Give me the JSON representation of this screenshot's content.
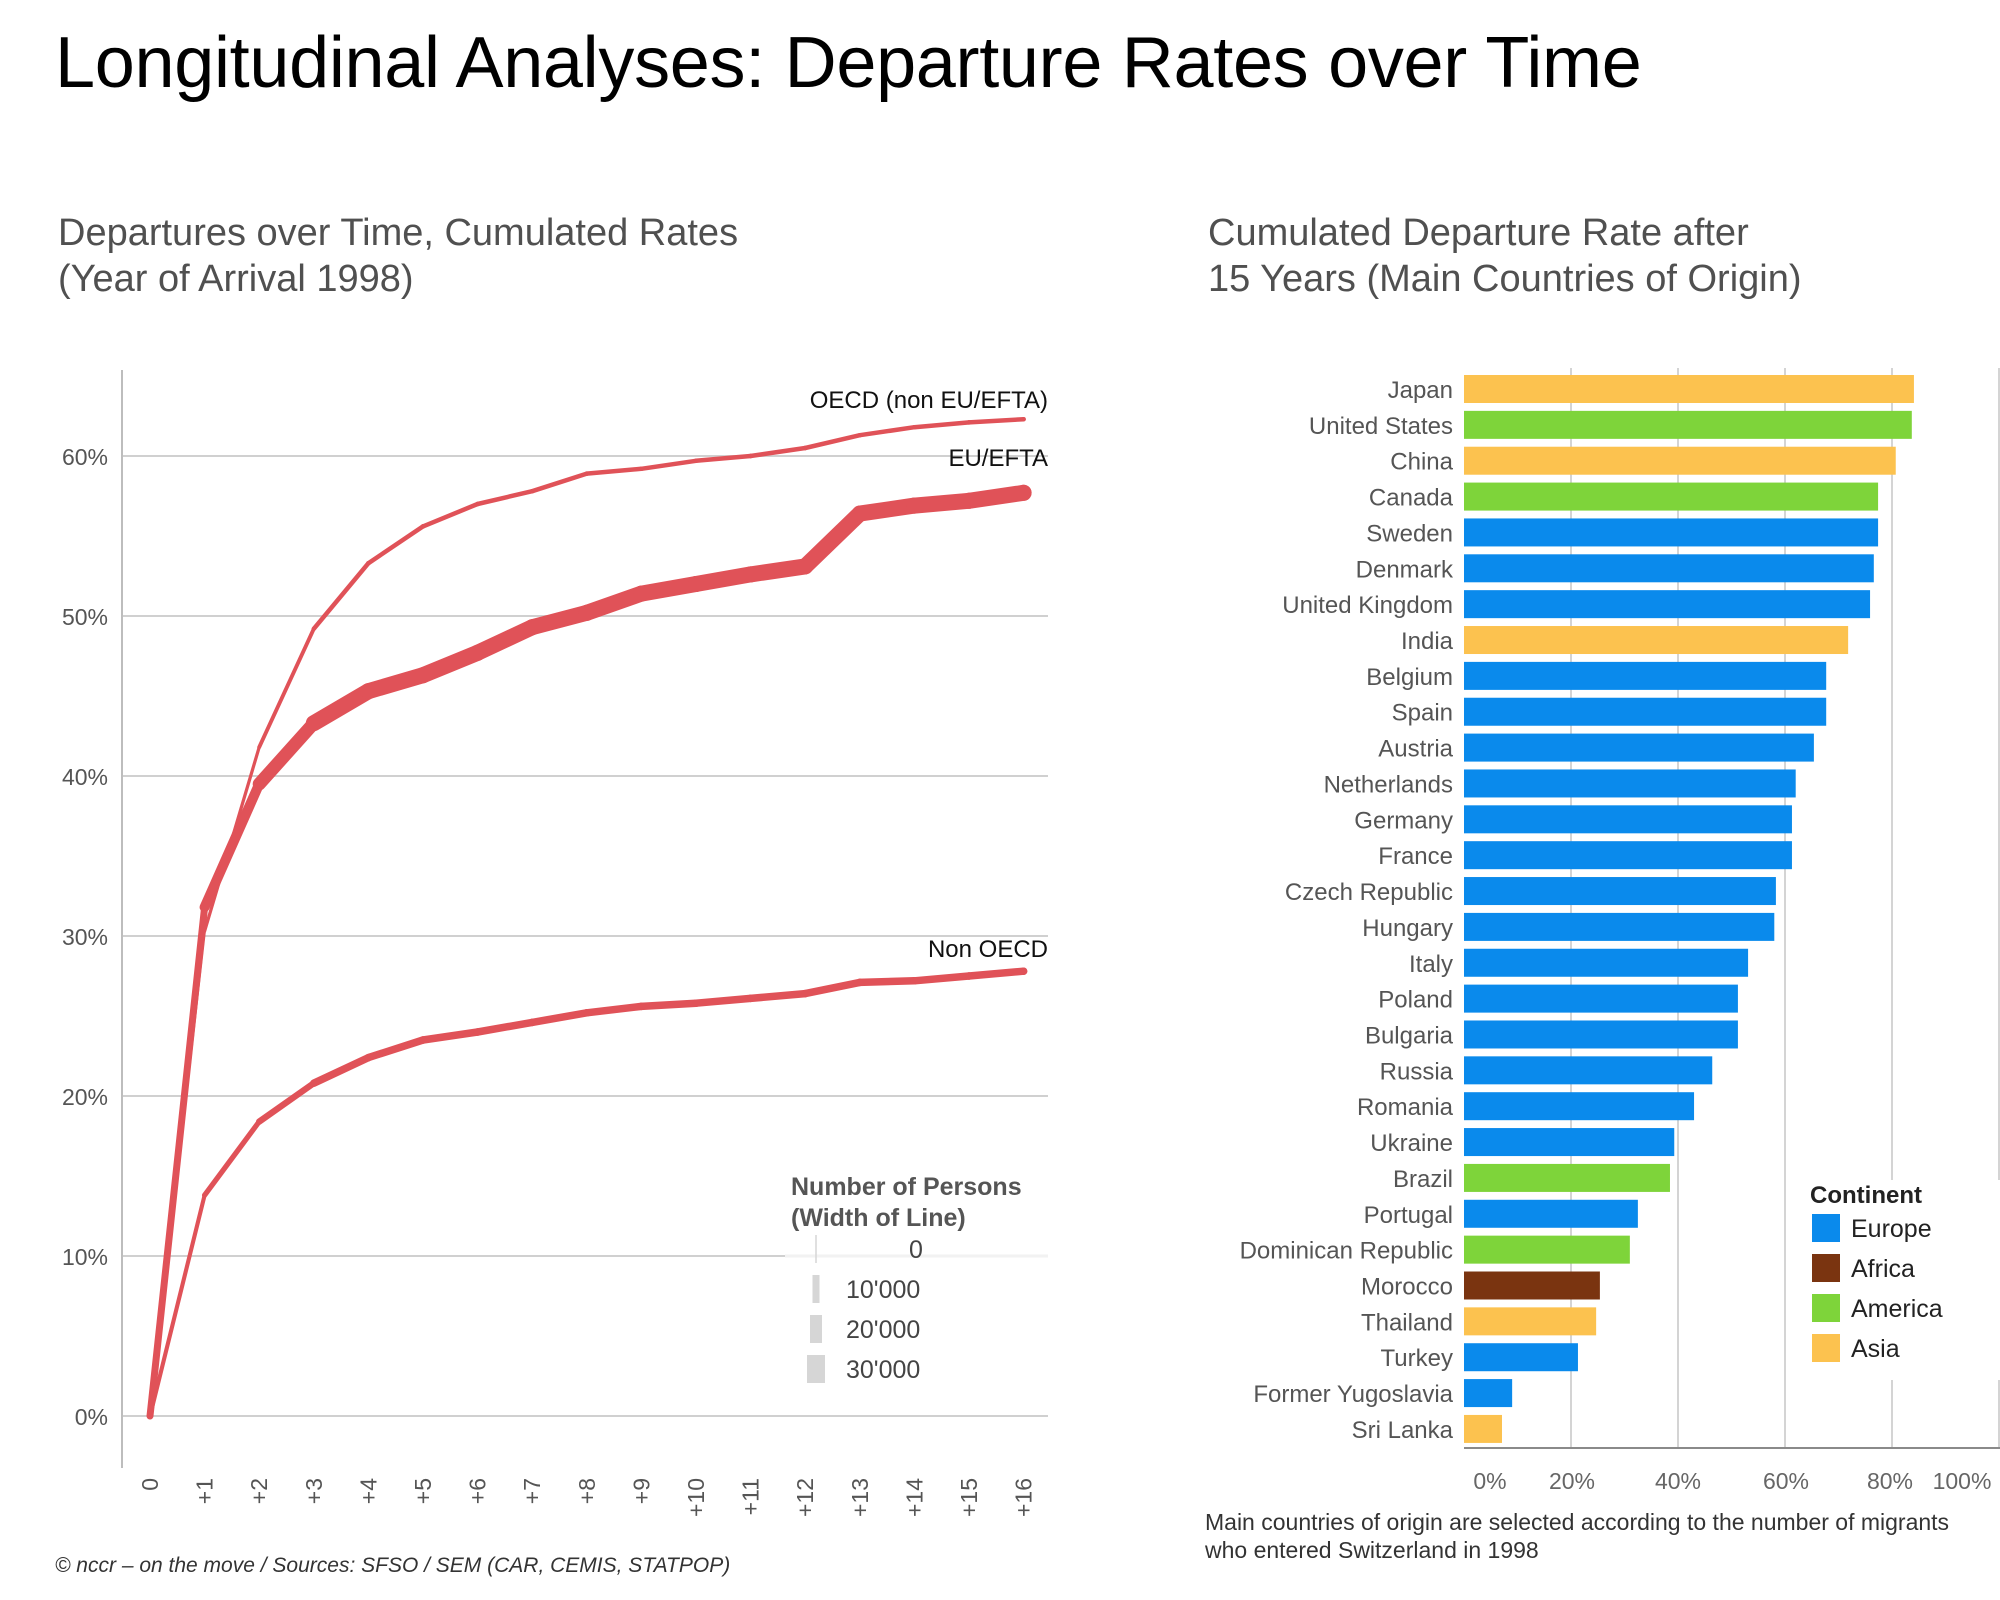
{
  "page": {
    "title": "Longitudinal Analyses: Departure Rates over Time",
    "footer_source": "© nccr – on the move / Sources: SFSO / SEM (CAR, CEMIS, STATPOP)",
    "footer_note_line1": "Main countries of origin are selected according to the number of migrants",
    "footer_note_line2": "who entered Switzerland in 1998"
  },
  "chart_data": [
    {
      "type": "line",
      "title_line1": "Departures over Time, Cumulated Rates",
      "title_line2": "(Year of Arrival 1998)",
      "xlabel": "",
      "ylabel": "",
      "x": [
        "0",
        "+1",
        "+2",
        "+3",
        "+4",
        "+5",
        "+6",
        "+7",
        "+8",
        "+9",
        "+10",
        "+11",
        "+12",
        "+13",
        "+14",
        "+15",
        "+16"
      ],
      "ylim": [
        0,
        65
      ],
      "yticks": [
        0,
        10,
        20,
        30,
        40,
        50,
        60
      ],
      "ytick_labels": [
        "0%",
        "10%",
        "20%",
        "30%",
        "40%",
        "50%",
        "60%"
      ],
      "grid": true,
      "line_color": "#e05258",
      "series": [
        {
          "name": "OECD (non EU/EFTA)",
          "values": [
            0,
            30.3,
            41.8,
            49.2,
            53.3,
            55.6,
            57.0,
            57.8,
            58.9,
            59.2,
            59.7,
            60.0,
            60.5,
            61.3,
            61.8,
            62.1,
            62.3
          ],
          "persons_level": "small"
        },
        {
          "name": "EU/EFTA",
          "values": [
            0,
            31.8,
            39.5,
            43.3,
            45.3,
            46.3,
            47.7,
            49.3,
            50.2,
            51.4,
            52.0,
            52.6,
            53.1,
            56.4,
            56.9,
            57.2,
            57.7
          ],
          "persons_level": "large"
        },
        {
          "name": "Non OECD",
          "values": [
            0,
            13.8,
            18.4,
            20.8,
            22.4,
            23.5,
            24.0,
            24.6,
            25.2,
            25.6,
            25.8,
            26.1,
            26.4,
            27.1,
            27.2,
            27.5,
            27.8
          ],
          "persons_level": "medium"
        }
      ],
      "legend": {
        "title_line1": "Number of Persons",
        "title_line2": "(Width of Line)",
        "placement": "bottom-right",
        "items": [
          "0",
          "10'000",
          "20'000",
          "30'000"
        ],
        "swatch_color": "#d6d6d6"
      }
    },
    {
      "type": "bar",
      "orientation": "horizontal",
      "title_line1": "Cumulated Departure Rate after",
      "title_line2": "15 Years (Main Countries of Origin)",
      "xlim": [
        0,
        100
      ],
      "xticks": [
        0,
        20,
        40,
        60,
        80,
        100
      ],
      "xtick_labels": [
        "0%",
        "20%",
        "40%",
        "60%",
        "80%",
        "100%"
      ],
      "grid": true,
      "categories": [
        "Japan",
        "United States",
        "China",
        "Canada",
        "Sweden",
        "Denmark",
        "United Kingdom",
        "India",
        "Belgium",
        "Spain",
        "Austria",
        "Netherlands",
        "Germany",
        "France",
        "Czech Republic",
        "Hungary",
        "Italy",
        "Poland",
        "Bulgaria",
        "Russia",
        "Romania",
        "Ukraine",
        "Brazil",
        "Portugal",
        "Dominican Republic",
        "Morocco",
        "Thailand",
        "Turkey",
        "Former Yugoslavia",
        "Sri Lanka"
      ],
      "values": [
        84.1,
        83.7,
        80.7,
        77.4,
        77.4,
        76.6,
        75.9,
        71.8,
        67.7,
        67.7,
        65.4,
        62.0,
        61.3,
        61.3,
        58.3,
        58.0,
        53.1,
        51.2,
        51.2,
        46.4,
        43.0,
        39.3,
        38.5,
        32.5,
        31.0,
        25.4,
        24.7,
        21.3,
        9.0,
        7.1
      ],
      "continents": [
        "Asia",
        "America",
        "Asia",
        "America",
        "Europe",
        "Europe",
        "Europe",
        "Asia",
        "Europe",
        "Europe",
        "Europe",
        "Europe",
        "Europe",
        "Europe",
        "Europe",
        "Europe",
        "Europe",
        "Europe",
        "Europe",
        "Europe",
        "Europe",
        "Europe",
        "America",
        "Europe",
        "America",
        "Africa",
        "Asia",
        "Europe",
        "Europe",
        "Asia"
      ],
      "legend": {
        "title": "Continent",
        "placement": "bottom-right",
        "items": [
          {
            "name": "Europe",
            "color": "#0a8aec"
          },
          {
            "name": "Africa",
            "color": "#7a3410"
          },
          {
            "name": "America",
            "color": "#7ed43a"
          },
          {
            "name": "Asia",
            "color": "#fcc24f"
          }
        ]
      }
    }
  ]
}
